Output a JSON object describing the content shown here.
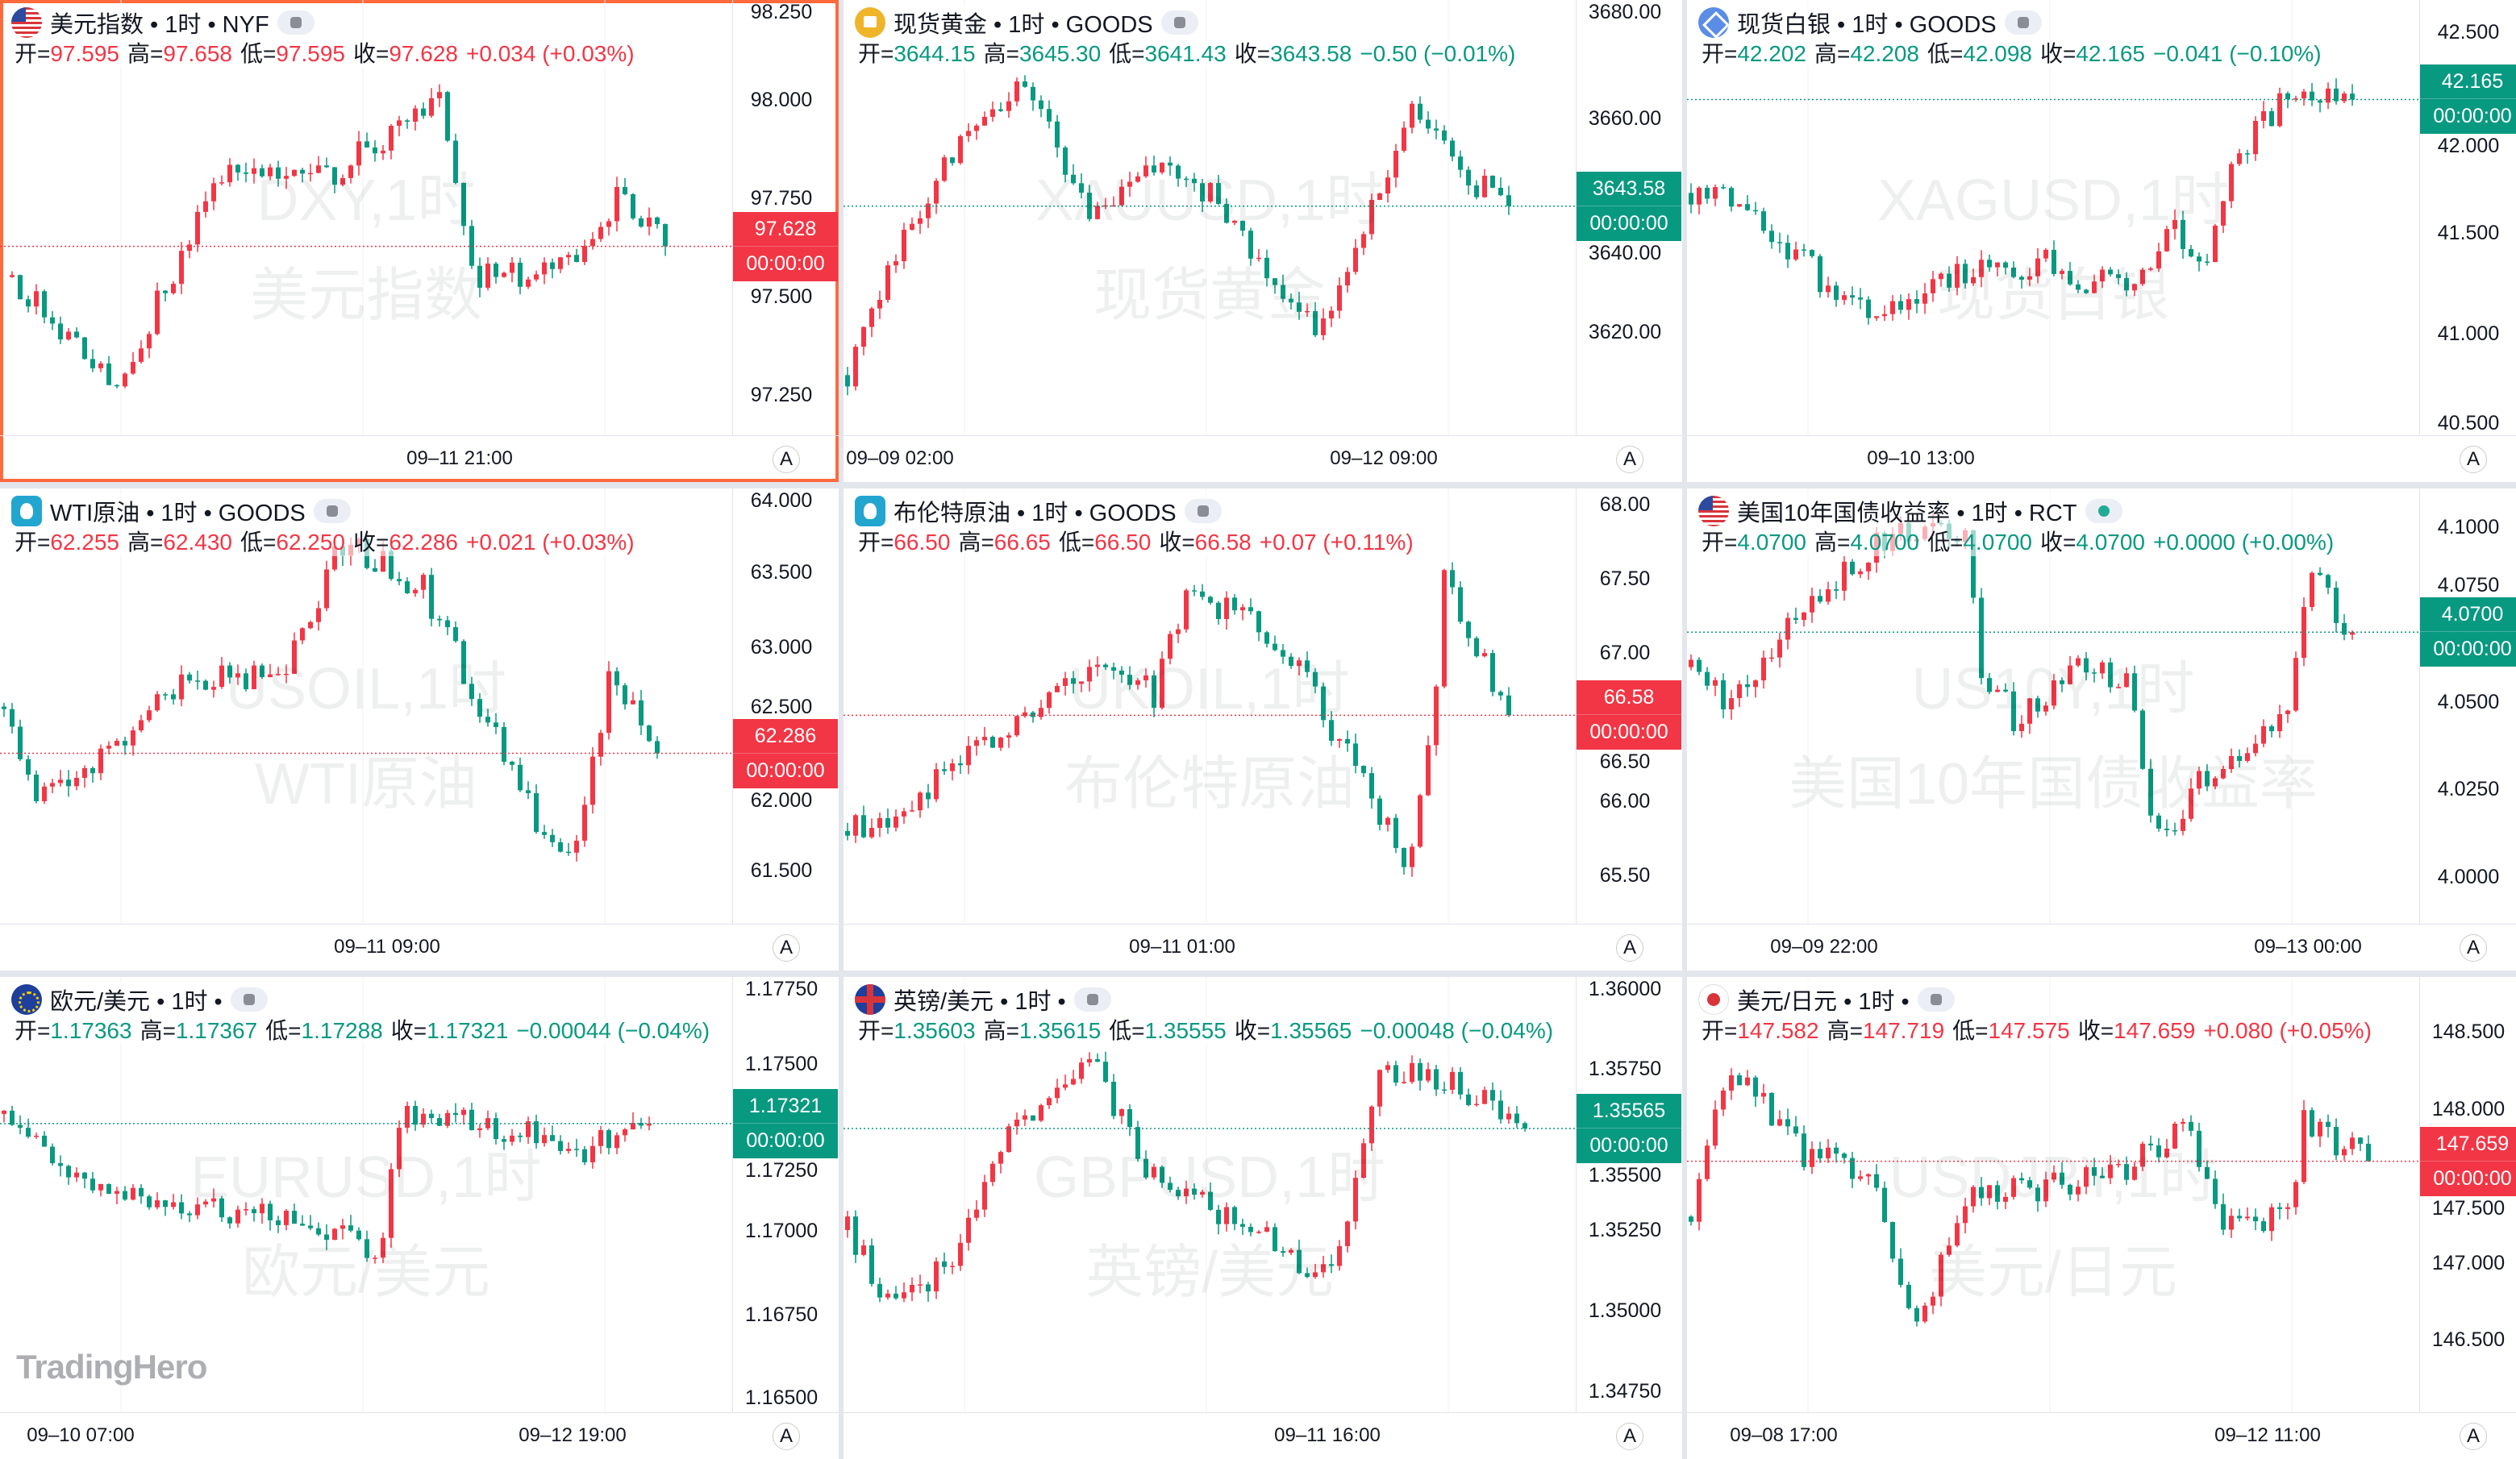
{
  "labels": {
    "open": "开=",
    "high": "高=",
    "low": "低=",
    "close": "收=",
    "timer": "00:00:00",
    "auto": "A"
  },
  "logo": "TradingHero",
  "colors": {
    "up": "#f23645",
    "down": "#089981",
    "selected": "#ff6a3d"
  },
  "panels": [
    {
      "title": "美元指数 • 1时 • NYF",
      "icon": "us-flag-icon",
      "iconClass": "ic-us",
      "status": "paused",
      "selected": true,
      "open": "97.595",
      "high": "97.658",
      "low": "97.595",
      "close": "97.628",
      "change": "+0.034 (+0.03%)",
      "dir": "up",
      "wm1": "DXY,1时",
      "wm2": "美元指数",
      "range": [
        98.254,
        97.148
      ],
      "price": 97.628,
      "ticks": [
        "98.250",
        "98.000",
        "97.750",
        "97.500",
        "97.250"
      ],
      "times": [
        {
          "text": "09–11 21:00",
          "idx": 57
        }
      ],
      "path": [
        [
          1,
          97.55
        ],
        [
          14,
          97.27
        ],
        [
          28,
          97.85
        ],
        [
          40,
          97.8
        ],
        [
          54,
          98.0
        ],
        [
          58,
          97.55
        ],
        [
          68,
          97.55
        ],
        [
          76,
          97.75
        ],
        [
          82,
          97.628
        ]
      ]
    },
    {
      "title": "现货黄金 • 1时 • GOODS",
      "icon": "gold-icon",
      "iconClass": "ic-gold",
      "status": "paused",
      "open": "3644.15",
      "high": "3645.30",
      "low": "3641.43",
      "close": "3643.58",
      "change": "−0.50 (−0.01%)",
      "dir": "dn",
      "wm1": "XAUUSD,1时",
      "wm2": "现货黄金",
      "range": [
        3682.1,
        3600.75
      ],
      "price": 3643.58,
      "ticks": [
        "3680.00",
        "3660.00",
        "3640.00",
        "3620.00"
      ],
      "times": [
        {
          "text": "09–09 02:00",
          "idx": 7
        },
        {
          "text": "09–12 09:00",
          "idx": 67
        }
      ],
      "path": [
        [
          0,
          3612
        ],
        [
          6,
          3635
        ],
        [
          12,
          3652
        ],
        [
          22,
          3668
        ],
        [
          30,
          3640
        ],
        [
          38,
          3650
        ],
        [
          46,
          3645
        ],
        [
          52,
          3630
        ],
        [
          58,
          3620
        ],
        [
          64,
          3640
        ],
        [
          70,
          3660
        ],
        [
          76,
          3650
        ],
        [
          82,
          3643.58
        ]
      ]
    },
    {
      "title": "现货白银 • 1时 • GOODS",
      "icon": "silver-icon",
      "iconClass": "ic-silver",
      "status": "paused",
      "open": "42.202",
      "high": "42.208",
      "low": "42.098",
      "close": "42.165",
      "change": "−0.041 (−0.10%)",
      "dir": "dn",
      "wm1": "XAGUSD,1时",
      "wm2": "现货白银",
      "range": [
        42.661,
        40.492
      ],
      "price": 42.165,
      "ticks": [
        "42.500",
        "42.000",
        "41.500",
        "41.000",
        "40.500"
      ],
      "times": [
        {
          "text": "09–10 13:00",
          "idx": 29
        }
      ],
      "path": [
        [
          0,
          41.7
        ],
        [
          8,
          41.6
        ],
        [
          18,
          41.2
        ],
        [
          24,
          41.1
        ],
        [
          34,
          41.3
        ],
        [
          44,
          41.35
        ],
        [
          54,
          41.2
        ],
        [
          60,
          41.5
        ],
        [
          64,
          41.4
        ],
        [
          68,
          41.9
        ],
        [
          74,
          42.2
        ],
        [
          80,
          42.2
        ],
        [
          82,
          42.165
        ]
      ]
    },
    {
      "title": "WTI原油 • 1时 • GOODS",
      "icon": "oil-icon",
      "iconClass": "ic-oil",
      "status": "paused",
      "open": "62.255",
      "high": "62.430",
      "low": "62.250",
      "close": "62.286",
      "change": "+0.021 (+0.03%)",
      "dir": "up",
      "wm1": "USOIL,1时",
      "wm2": "WTI原油",
      "range": [
        64.065,
        61.141
      ],
      "price": 62.286,
      "ticks": [
        "64.000",
        "63.500",
        "63.000",
        "62.500",
        "62.000",
        "61.500"
      ],
      "times": [
        {
          "text": "09–11 09:00",
          "idx": 48
        }
      ],
      "path": [
        [
          0,
          62.6
        ],
        [
          4,
          62.0
        ],
        [
          14,
          62.3
        ],
        [
          22,
          62.8
        ],
        [
          34,
          62.8
        ],
        [
          42,
          63.7
        ],
        [
          52,
          63.4
        ],
        [
          60,
          62.5
        ],
        [
          66,
          61.8
        ],
        [
          71,
          61.6
        ],
        [
          75,
          62.8
        ],
        [
          81,
          62.286
        ]
      ]
    },
    {
      "title": "布伦特原油 • 1时 • GOODS",
      "icon": "oil-icon",
      "iconClass": "ic-oil",
      "status": "paused",
      "open": "66.50",
      "high": "66.65",
      "low": "66.50",
      "close": "66.58",
      "change": "+0.07 (+0.11%)",
      "dir": "up",
      "wm1": "UKOIL,1时",
      "wm2": "布伦特原油",
      "range": [
        68.109,
        65.174
      ],
      "price": 66.58,
      "ticks": [
        "68.00",
        "67.50",
        "67.00",
        "66.50",
        "66.00",
        "65.50"
      ],
      "times": [
        {
          "text": "09–11 01:00",
          "idx": 42
        }
      ],
      "path": [
        [
          0,
          65.8
        ],
        [
          8,
          66.0
        ],
        [
          18,
          66.4
        ],
        [
          26,
          66.8
        ],
        [
          34,
          66.9
        ],
        [
          38,
          66.7
        ],
        [
          42,
          67.4
        ],
        [
          50,
          67.2
        ],
        [
          56,
          66.9
        ],
        [
          62,
          66.3
        ],
        [
          68,
          65.7
        ],
        [
          70,
          65.6
        ],
        [
          73,
          66.8
        ],
        [
          74,
          67.5
        ],
        [
          82,
          66.58
        ]
      ]
    },
    {
      "title": "美国10年国债收益率 • 1时 • RCT",
      "icon": "us-flag-icon",
      "iconClass": "ic-us",
      "status": "live",
      "open": "4.0700",
      "high": "4.0700",
      "low": "4.0700",
      "close": "4.0700",
      "change": "+0.0000 (+0.00%)",
      "dir": "dn",
      "wm1": "US10Y,1时",
      "wm2": "美国10年国债收益率",
      "range": [
        4.1111,
        3.9866
      ],
      "price": 4.07,
      "ticks": [
        "4.1000",
        "4.0750",
        "4.0500",
        "4.0250",
        "4.0000"
      ],
      "times": [
        {
          "text": "09–09 22:00",
          "idx": 17
        },
        {
          "text": "09–13 00:00",
          "idx": 77
        }
      ],
      "path": [
        [
          0,
          4.06
        ],
        [
          4,
          4.05
        ],
        [
          12,
          4.07
        ],
        [
          20,
          4.09
        ],
        [
          26,
          4.1
        ],
        [
          34,
          4.095
        ],
        [
          36,
          4.06
        ],
        [
          40,
          4.045
        ],
        [
          48,
          4.06
        ],
        [
          54,
          4.055
        ],
        [
          58,
          4.01
        ],
        [
          64,
          4.03
        ],
        [
          70,
          4.04
        ],
        [
          74,
          4.05
        ],
        [
          77,
          4.085
        ],
        [
          82,
          4.07
        ]
      ]
    },
    {
      "title": "欧元/美元 • 1时 •",
      "icon": "eu-flag-icon",
      "iconClass": "ic-eu",
      "status": "paused",
      "open": "1.17363",
      "high": "1.17367",
      "low": "1.17288",
      "close": "1.17321",
      "change": "−0.00044 (−0.04%)",
      "dir": "dn",
      "wm1": "EURUSD,1时",
      "wm2": "欧元/美元",
      "range": [
        1.1776,
        1.16457
      ],
      "price": 1.17321,
      "ticks": [
        "1.17750",
        "1.17500",
        "1.17250",
        "1.17000",
        "1.16750",
        "1.16500"
      ],
      "times": [
        {
          "text": "09–10 07:00",
          "idx": 10
        },
        {
          "text": "09–12 19:00",
          "idx": 71
        }
      ],
      "path": [
        [
          0,
          1.1735
        ],
        [
          8,
          1.1715
        ],
        [
          20,
          1.171
        ],
        [
          32,
          1.1705
        ],
        [
          47,
          1.1695
        ],
        [
          49,
          1.1735
        ],
        [
          58,
          1.1732
        ],
        [
          66,
          1.173
        ],
        [
          72,
          1.1725
        ],
        [
          80,
          1.17321
        ]
      ]
    },
    {
      "title": "英镑/美元 • 1时 •",
      "icon": "uk-flag-icon",
      "iconClass": "ic-uk",
      "status": "paused",
      "open": "1.35603",
      "high": "1.35615",
      "low": "1.35555",
      "close": "1.35565",
      "change": "−0.00048 (−0.04%)",
      "dir": "dn",
      "wm1": "GBPUSD,1时",
      "wm2": "英镑/美元",
      "range": [
        1.36035,
        1.34685
      ],
      "price": 1.35565,
      "ticks": [
        "1.36000",
        "1.35750",
        "1.35500",
        "1.35250",
        "1.35000",
        "1.34750"
      ],
      "times": [
        {
          "text": "09–11 16:00",
          "idx": 60
        }
      ],
      "path": [
        [
          0,
          1.3525
        ],
        [
          6,
          1.35
        ],
        [
          14,
          1.352
        ],
        [
          20,
          1.3555
        ],
        [
          30,
          1.358
        ],
        [
          38,
          1.354
        ],
        [
          46,
          1.353
        ],
        [
          60,
          1.351
        ],
        [
          66,
          1.3575
        ],
        [
          76,
          1.357
        ],
        [
          84,
          1.35565
        ]
      ]
    },
    {
      "title": "美元/日元 • 1时 •",
      "icon": "jp-flag-icon",
      "iconClass": "ic-jp",
      "status": "paused",
      "open": "147.582",
      "high": "147.719",
      "low": "147.575",
      "close": "147.659",
      "change": "+0.080 (+0.05%)",
      "dir": "up",
      "wm1": "USDJPY,1时",
      "wm2": "美元/日元",
      "range": [
        148.856,
        146.029
      ],
      "price": 147.659,
      "ticks": [
        "148.500",
        "148.000",
        "147.500",
        "147.000",
        "146.500"
      ],
      "times": [
        {
          "text": "09–08 17:00",
          "idx": 12
        },
        {
          "text": "09–12 11:00",
          "idx": 72
        }
      ],
      "path": [
        [
          0,
          147.3
        ],
        [
          5,
          148.3
        ],
        [
          14,
          147.7
        ],
        [
          22,
          147.6
        ],
        [
          28,
          146.6
        ],
        [
          34,
          147.4
        ],
        [
          44,
          147.5
        ],
        [
          54,
          147.6
        ],
        [
          61,
          147.9
        ],
        [
          66,
          147.2
        ],
        [
          74,
          147.3
        ],
        [
          76,
          147.9
        ],
        [
          84,
          147.659
        ]
      ]
    }
  ]
}
